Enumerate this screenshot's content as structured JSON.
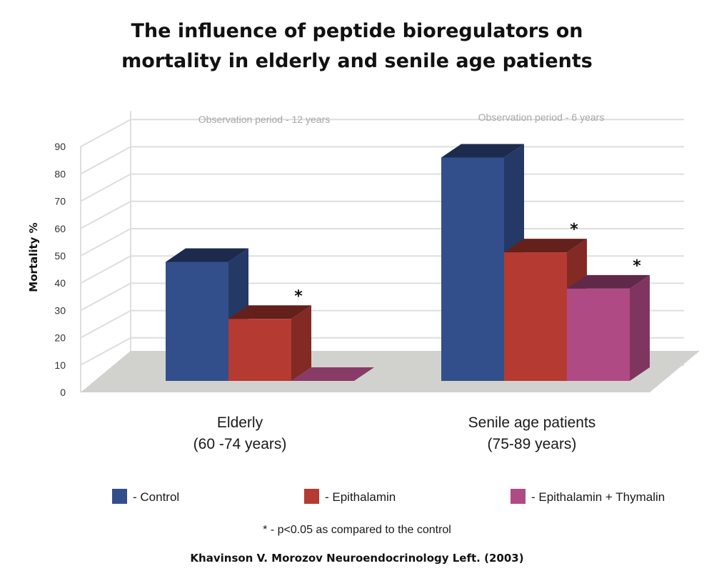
{
  "chart_data": {
    "type": "bar",
    "title_line1": "The influence of peptide bioregulators on",
    "title_line2": "mortality in elderly and senile age patients",
    "ylabel": "Mortality %",
    "xlabel": "",
    "ylim": [
      0,
      90
    ],
    "y_ticks": [
      "0",
      "10",
      "20",
      "30",
      "40",
      "50",
      "60",
      "70",
      "80",
      "90"
    ],
    "grid": true,
    "style": "3d",
    "categories": [
      {
        "line1": "Elderly",
        "line2": "(60 -74 years)",
        "period": "Observation period - 12 years"
      },
      {
        "line1": "Senile age patients",
        "line2": "(75-89 years)",
        "period": "Observation period - 6 years"
      }
    ],
    "series": [
      {
        "name": "- Control",
        "color": "#324f8c",
        "values": [
          43.6,
          81.8
        ],
        "significant": [
          false,
          false
        ]
      },
      {
        "name": "- Epithalamin",
        "color": "#b53a31",
        "values": [
          22.7,
          47.1
        ],
        "significant": [
          true,
          true
        ]
      },
      {
        "name": "- Epithalamin + Thymalin",
        "color": "#b04a84",
        "values": [
          0,
          33.8
        ],
        "significant": [
          false,
          true
        ]
      }
    ],
    "significance_marker": "*",
    "legend_position": "bottom",
    "footnote": "* - p<0.05 as compared to the control",
    "source": "Khavinson V. Morozov Neuroendocrinology Left. (2003)"
  }
}
